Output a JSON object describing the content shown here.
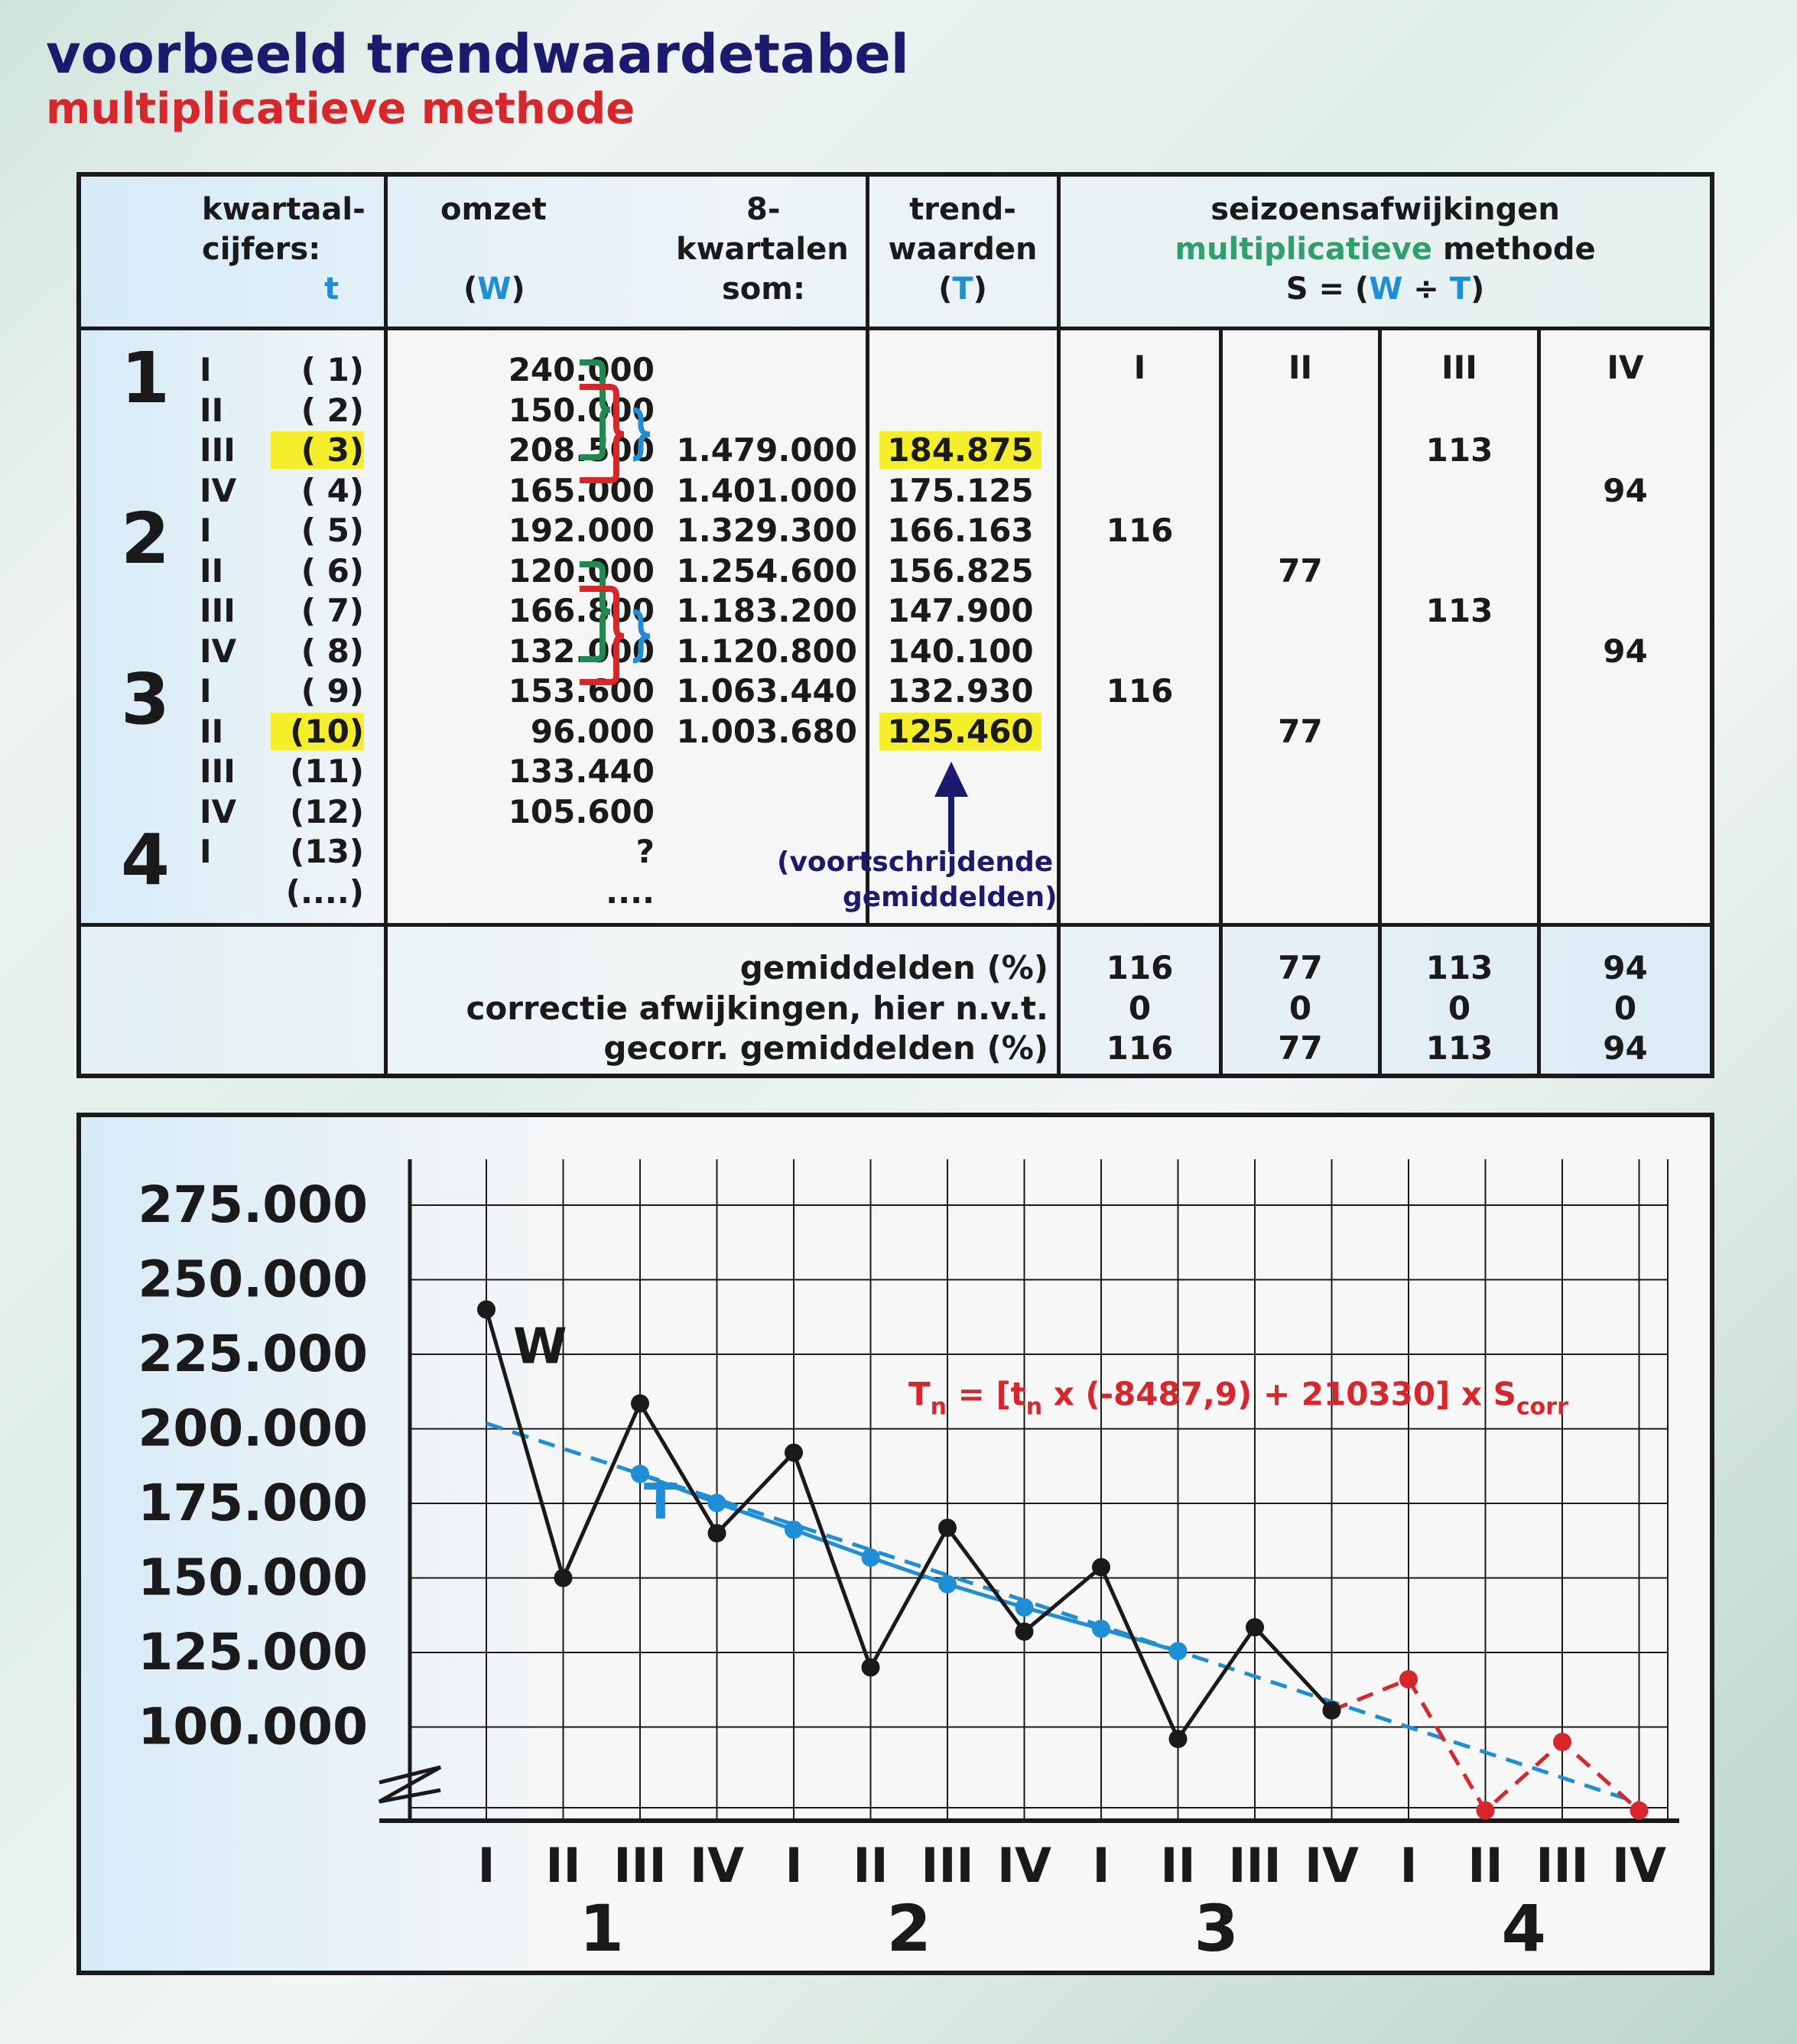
{
  "title": "voorbeeld trendwaardetabel",
  "subtitle": "multiplicatieve methode",
  "table": {
    "headers": {
      "kwartaal_line1": "kwartaal-",
      "kwartaal_line2": "cijfers:",
      "kwartaal_t": "t",
      "omzet": "omzet",
      "omzet_W": "(W)",
      "som_line1": "8-",
      "som_line2": "kwartalen",
      "som_line3": "som:",
      "trend_line1": "trend-",
      "trend_line2": "waarden",
      "trend_T": "(T)",
      "seizoen_line1": "seizoensafwijkingen",
      "seizoen_green": "multiplicatieve",
      "seizoen_rest": " methode",
      "formula_S": "S = (",
      "formula_W": "W",
      "formula_div": " ÷ ",
      "formula_T": "T",
      "formula_close": ")"
    },
    "years": [
      "1",
      "2",
      "3",
      "4"
    ],
    "rows": [
      {
        "q": "I",
        "t": "( 1)",
        "w": "240.000",
        "som": "",
        "trend": "",
        "s1": "",
        "s2": "",
        "s3": "",
        "s4": ""
      },
      {
        "q": "II",
        "t": "( 2)",
        "w": "150.000",
        "som": "",
        "trend": "",
        "s1": "",
        "s2": "",
        "s3": "",
        "s4": ""
      },
      {
        "q": "III",
        "t": "( 3)",
        "w": "208.500",
        "som": "1.479.000",
        "trend": "184.875",
        "s1": "",
        "s2": "",
        "s3": "113",
        "s4": ""
      },
      {
        "q": "IV",
        "t": "( 4)",
        "w": "165.000",
        "som": "1.401.000",
        "trend": "175.125",
        "s1": "",
        "s2": "",
        "s3": "",
        "s4": "94"
      },
      {
        "q": "I",
        "t": "( 5)",
        "w": "192.000",
        "som": "1.329.300",
        "trend": "166.163",
        "s1": "116",
        "s2": "",
        "s3": "",
        "s4": ""
      },
      {
        "q": "II",
        "t": "( 6)",
        "w": "120.000",
        "som": "1.254.600",
        "trend": "156.825",
        "s1": "",
        "s2": "77",
        "s3": "",
        "s4": ""
      },
      {
        "q": "III",
        "t": "( 7)",
        "w": "166.800",
        "som": "1.183.200",
        "trend": "147.900",
        "s1": "",
        "s2": "",
        "s3": "113",
        "s4": ""
      },
      {
        "q": "IV",
        "t": "( 8)",
        "w": "132.000",
        "som": "1.120.800",
        "trend": "140.100",
        "s1": "",
        "s2": "",
        "s3": "",
        "s4": "94"
      },
      {
        "q": "I",
        "t": "( 9)",
        "w": "153.600",
        "som": "1.063.440",
        "trend": "132.930",
        "s1": "116",
        "s2": "",
        "s3": "",
        "s4": ""
      },
      {
        "q": "II",
        "t": "(10)",
        "w": "96.000",
        "som": "1.003.680",
        "trend": "125.460",
        "s1": "",
        "s2": "77",
        "s3": "",
        "s4": ""
      },
      {
        "q": "III",
        "t": "(11)",
        "w": "133.440",
        "som": "",
        "trend": "",
        "s1": "",
        "s2": "",
        "s3": "",
        "s4": ""
      },
      {
        "q": "IV",
        "t": "(12)",
        "w": "105.600",
        "som": "",
        "trend": "",
        "s1": "",
        "s2": "",
        "s3": "",
        "s4": ""
      },
      {
        "q": "I",
        "t": "(13)",
        "w": "?",
        "som": "",
        "trend": "",
        "s1": "",
        "s2": "",
        "s3": "",
        "s4": ""
      },
      {
        "q": "",
        "t": "(....)",
        "w": "....",
        "som": "",
        "trend": "",
        "s1": "",
        "s2": "",
        "s3": "",
        "s4": ""
      }
    ],
    "season_headers": [
      "I",
      "II",
      "III",
      "IV"
    ],
    "note_line1": "(voortschrijdende",
    "note_line2": "gemiddelden)",
    "summary": [
      {
        "label": "gemiddelden (%)",
        "values": [
          "116",
          "77",
          "113",
          "94"
        ]
      },
      {
        "label": "correctie afwijkingen, hier n.v.t.",
        "values": [
          "0",
          "0",
          "0",
          "0"
        ]
      },
      {
        "label": "gecorr. gemiddelden (%)",
        "values": [
          "116",
          "77",
          "113",
          "94"
        ]
      }
    ]
  },
  "chart_data": {
    "type": "line",
    "y_tick_labels": [
      "275.000",
      "250.000",
      "225.000",
      "200.000",
      "175.000",
      "150.000",
      "125.000",
      "100.000"
    ],
    "y_ticks": [
      275000,
      250000,
      225000,
      200000,
      175000,
      150000,
      125000,
      100000
    ],
    "ylim": [
      75000,
      290000
    ],
    "x_quarter_labels": [
      "I",
      "II",
      "III",
      "IV",
      "I",
      "II",
      "III",
      "IV",
      "I",
      "II",
      "III",
      "IV",
      "I",
      "II",
      "III",
      "IV"
    ],
    "x_year_labels": [
      "1",
      "2",
      "3",
      "4"
    ],
    "x": [
      1,
      2,
      3,
      4,
      5,
      6,
      7,
      8,
      9,
      10,
      11,
      12,
      13,
      14,
      15,
      16
    ],
    "series": [
      {
        "name": "W",
        "color": "#1a1a1a",
        "x": [
          1,
          2,
          3,
          4,
          5,
          6,
          7,
          8,
          9,
          10,
          11,
          12
        ],
        "values": [
          240000,
          150000,
          208500,
          165000,
          192000,
          120000,
          166800,
          132000,
          153600,
          96000,
          133440,
          105600
        ]
      },
      {
        "name": "T",
        "color": "#1e8fd6",
        "x": [
          3,
          4,
          5,
          6,
          7,
          8,
          9,
          10
        ],
        "values": [
          184875,
          175125,
          166163,
          156825,
          147900,
          140100,
          132930,
          125460
        ]
      },
      {
        "name": "",
        "color": "#1e8fd6",
        "style": "dashed",
        "x": [
          1,
          16
        ],
        "values": [
          201842,
          74530
        ]
      },
      {
        "name": "",
        "color": "#d9262b",
        "style": "dashed",
        "x": [
          12,
          13,
          14,
          15,
          16
        ],
        "values": [
          105600,
          116000,
          72000,
          95000,
          72000
        ]
      }
    ],
    "formula": {
      "T": "T",
      "n1": "n",
      "mid1": " = [t",
      "n2": "n",
      "mid2": " x (-8487,9) + 210330] x S",
      "sub": "corr"
    }
  }
}
